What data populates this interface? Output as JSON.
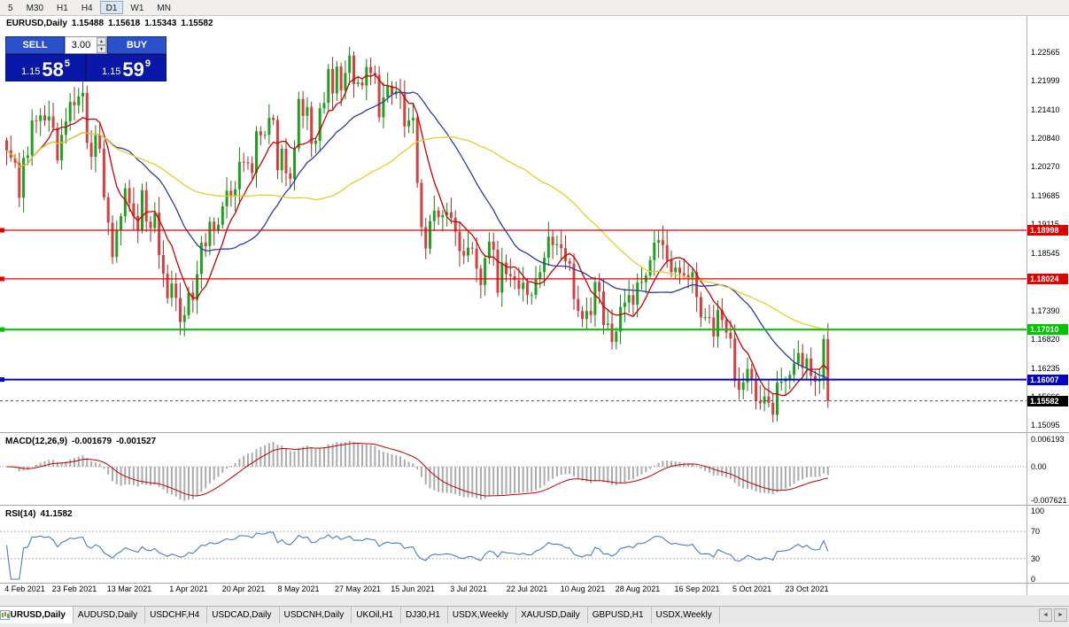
{
  "toolbar": {
    "timeframes": [
      {
        "label": "5",
        "active": false
      },
      {
        "label": "M30",
        "active": false
      },
      {
        "label": "H1",
        "active": false
      },
      {
        "label": "H4",
        "active": false
      },
      {
        "label": "D1",
        "active": true
      },
      {
        "label": "W1",
        "active": false
      },
      {
        "label": "MN",
        "active": false
      }
    ]
  },
  "chart": {
    "symbol_title": "EURUSD,Daily",
    "ohlc": {
      "open": "1.15488",
      "high": "1.15618",
      "low": "1.15343",
      "close": "1.15582"
    },
    "trade_panel": {
      "sell_label": "SELL",
      "buy_label": "BUY",
      "lot": "3.00",
      "sell_price": {
        "base": "1.15",
        "big": "58",
        "sup": "5"
      },
      "buy_price": {
        "base": "1.15",
        "big": "59",
        "sup": "9"
      }
    },
    "price_axis": {
      "top": 1.22565,
      "bottom": 1.15095,
      "labels": [
        "1.22565",
        "1.21999",
        "1.21410",
        "1.20840",
        "1.20270",
        "1.19685",
        "1.19115",
        "1.18545",
        "1.17390",
        "1.16820",
        "1.16235",
        "1.15666",
        "1.15095"
      ]
    },
    "levels": [
      {
        "price": 1.18998,
        "label": "1.18998",
        "color": "#e00000",
        "width": 1.2
      },
      {
        "price": 1.18024,
        "label": "1.18024",
        "color": "#e00000",
        "width": 1.2
      },
      {
        "price": 1.1701,
        "label": "1.17010",
        "color": "#00c400",
        "width": 2
      },
      {
        "price": 1.16007,
        "label": "1.16007",
        "color": "#0000c8",
        "width": 2
      }
    ],
    "current_price": {
      "price": 1.15582,
      "label": "1.15582",
      "color": "#000000"
    },
    "candles": {
      "up_color": "#1fa11f",
      "up_edge": "#128012",
      "down_color": "#d43f3f",
      "down_edge": "#a32b2b",
      "first_open": 1.208,
      "closes": [
        1.206,
        1.2045,
        1.2035,
        1.1965,
        1.2045,
        1.205,
        1.212,
        1.2119,
        1.213,
        1.212,
        1.2128,
        1.2105,
        1.204,
        1.2091,
        1.2118,
        1.2157,
        1.215,
        1.2168,
        1.2175,
        1.2075,
        1.2047,
        1.209,
        1.2063,
        1.1966,
        1.1915,
        1.1846,
        1.19,
        1.1928,
        1.1984,
        1.1954,
        1.1928,
        1.19,
        1.198,
        1.1917,
        1.1904,
        1.1935,
        1.185,
        1.1813,
        1.1764,
        1.1793,
        1.1764,
        1.1716,
        1.173,
        1.1775,
        1.176,
        1.1812,
        1.1875,
        1.1868,
        1.1917,
        1.1899,
        1.1911,
        1.1948,
        1.1979,
        1.1967,
        1.1982,
        1.2037,
        1.2036,
        1.2034,
        1.2015,
        1.2098,
        1.209,
        1.2091,
        1.2125,
        1.2121,
        1.202,
        1.2063,
        1.2014,
        1.2003,
        1.2064,
        1.2163,
        1.2129,
        1.2147,
        1.2073,
        1.2079,
        1.2144,
        1.2155,
        1.2223,
        1.2174,
        1.2228,
        1.218,
        1.2215,
        1.225,
        1.2193,
        1.2196,
        1.219,
        1.2227,
        1.2215,
        1.2211,
        1.2126,
        1.2166,
        1.2189,
        1.2172,
        1.2178,
        1.2174,
        1.2108,
        1.212,
        1.2125,
        1.1995,
        1.1906,
        1.1863,
        1.1918,
        1.1939,
        1.1926,
        1.193,
        1.1936,
        1.1925,
        1.1897,
        1.1858,
        1.1849,
        1.1865,
        1.1863,
        1.1823,
        1.179,
        1.1844,
        1.1877,
        1.1861,
        1.1775,
        1.1835,
        1.1812,
        1.1808,
        1.18,
        1.1782,
        1.1795,
        1.177,
        1.177,
        1.1803,
        1.1816,
        1.1845,
        1.1887,
        1.187,
        1.1872,
        1.1864,
        1.1838,
        1.1833,
        1.1762,
        1.1738,
        1.1722,
        1.1738,
        1.173,
        1.1796,
        1.1777,
        1.171,
        1.1713,
        1.1676,
        1.1697,
        1.1746,
        1.1755,
        1.177,
        1.1751,
        1.1795,
        1.1796,
        1.1809,
        1.184,
        1.1875,
        1.188,
        1.187,
        1.184,
        1.1816,
        1.1825,
        1.1814,
        1.181,
        1.1805,
        1.1816,
        1.1766,
        1.1725,
        1.1726,
        1.1725,
        1.1687,
        1.174,
        1.172,
        1.1695,
        1.1683,
        1.1598,
        1.158,
        1.1595,
        1.1622,
        1.1599,
        1.1558,
        1.1553,
        1.1567,
        1.1554,
        1.153,
        1.1594,
        1.1597,
        1.1601,
        1.161,
        1.1633,
        1.1654,
        1.1624,
        1.1643,
        1.1608,
        1.1597,
        1.1602,
        1.1682,
        1.1558
      ]
    },
    "moving_averages": [
      {
        "name": "fast",
        "period": 8,
        "color": "#c90000"
      },
      {
        "name": "mid",
        "period": 24,
        "color": "#2b3c9e"
      },
      {
        "name": "slow",
        "period": 55,
        "color": "#e6ce29"
      }
    ],
    "date_axis": [
      {
        "label": "4 Feb 2021",
        "i": 3
      },
      {
        "label": "23 Feb 2021",
        "i": 16
      },
      {
        "label": "13 Mar 2021",
        "i": 29
      },
      {
        "label": "1 Apr 2021",
        "i": 43
      },
      {
        "label": "20 Apr 2021",
        "i": 56
      },
      {
        "label": "8 May 2021",
        "i": 69
      },
      {
        "label": "27 May 2021",
        "i": 83
      },
      {
        "label": "15 Jun 2021",
        "i": 96
      },
      {
        "label": "3 Jul 2021",
        "i": 109
      },
      {
        "label": "22 Jul 2021",
        "i": 123
      },
      {
        "label": "10 Aug 2021",
        "i": 136
      },
      {
        "label": "28 Aug 2021",
        "i": 149
      },
      {
        "label": "16 Sep 2021",
        "i": 163
      },
      {
        "label": "5 Oct 2021",
        "i": 176
      },
      {
        "label": "23 Oct 2021",
        "i": 189
      }
    ]
  },
  "macd": {
    "name": "MACD(12,26,9)",
    "value1": "-0.001679",
    "value2": "-0.001527",
    "axis": [
      "0.006193",
      "0.00",
      "-0.007621"
    ],
    "fast": 12,
    "slow": 26,
    "signal": 9,
    "hist_color": "#ababab",
    "signal_color": "#c00000"
  },
  "rsi": {
    "name": "RSI(14)",
    "value": "41.1582",
    "axis": [
      "100",
      "70",
      "30",
      "0"
    ],
    "levels": [
      70,
      30
    ],
    "period": 14,
    "color": "#4a7ebb"
  },
  "tabs": [
    {
      "label": "EURUSD,Daily",
      "active": true
    },
    {
      "label": "AUDUSD,Daily",
      "active": false
    },
    {
      "label": "USDCHF,H4",
      "active": false
    },
    {
      "label": "USDCAD,Daily",
      "active": false
    },
    {
      "label": "USDCNH,Daily",
      "active": false
    },
    {
      "label": "UKOil,H1",
      "active": false
    },
    {
      "label": "DJ30,H1",
      "active": false
    },
    {
      "label": "USDX,Weekly",
      "active": false
    },
    {
      "label": "XAUUSD,Daily",
      "active": false
    },
    {
      "label": "GBPUSD,H1",
      "active": false
    },
    {
      "label": "USDX,Weekly",
      "active": false
    }
  ]
}
